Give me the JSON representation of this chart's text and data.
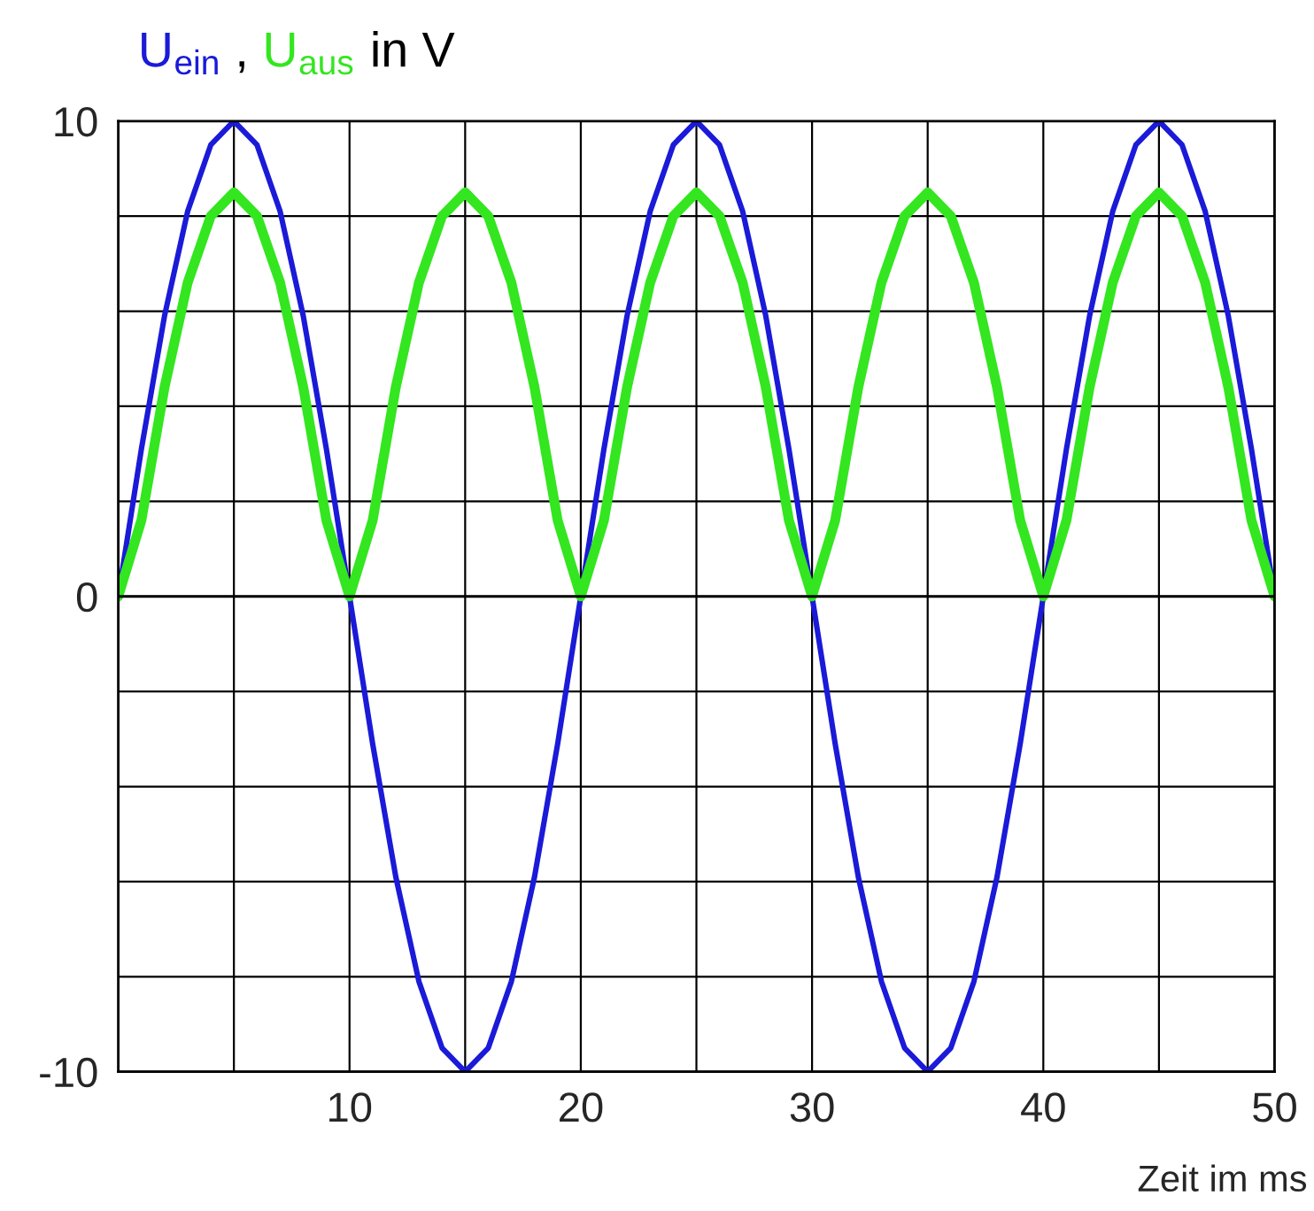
{
  "chart_data": {
    "type": "line",
    "title": "in V",
    "annotations": [
      ","
    ],
    "xlabel": "Zeit im ms",
    "x": [
      0,
      1,
      2,
      3,
      4,
      5,
      6,
      7,
      8,
      9,
      10,
      11,
      12,
      13,
      14,
      15,
      16,
      17,
      18,
      19,
      20,
      21,
      22,
      23,
      24,
      25,
      26,
      27,
      28,
      29,
      30,
      31,
      32,
      33,
      34,
      35,
      36,
      37,
      38,
      39,
      40,
      41,
      42,
      43,
      44,
      45,
      46,
      47,
      48,
      49,
      50
    ],
    "series": [
      {
        "name": "U$_{ein}$",
        "color": "#1a1ad8",
        "values": [
          0,
          3.1,
          5.9,
          8.1,
          9.5,
          10,
          9.5,
          8.1,
          5.9,
          3.1,
          0,
          -3.1,
          -5.9,
          -8.1,
          -9.5,
          -10,
          -9.5,
          -8.1,
          -5.9,
          -3.1,
          0,
          3.1,
          5.9,
          8.1,
          9.5,
          10,
          9.5,
          8.1,
          5.9,
          3.1,
          0,
          -3.1,
          -5.9,
          -8.1,
          -9.5,
          -10,
          -9.5,
          -8.1,
          -5.9,
          -3.1,
          0,
          3.1,
          5.9,
          8.1,
          9.5,
          10,
          9.5,
          8.1,
          5.9,
          3.1,
          0
        ]
      },
      {
        "name": "U$_{aus}$",
        "color": "#33e61f",
        "values": [
          0,
          1.6,
          4.4,
          6.6,
          8,
          8.5,
          8,
          6.6,
          4.4,
          1.6,
          0,
          1.6,
          4.4,
          6.6,
          8,
          8.5,
          8,
          6.6,
          4.4,
          1.6,
          0,
          1.6,
          4.4,
          6.6,
          8,
          8.5,
          8,
          6.6,
          4.4,
          1.6,
          0,
          1.6,
          4.4,
          6.6,
          8,
          8.5,
          8,
          6.6,
          4.4,
          1.6,
          0,
          1.6,
          4.4,
          6.6,
          8,
          8.5,
          8,
          6.6,
          4.4,
          1.6,
          0
        ]
      }
    ],
    "xlim": [
      0,
      50
    ],
    "ylim": [
      -10,
      10
    ],
    "xticks": [
      {
        "value": 0,
        "label": null
      },
      {
        "value": 5,
        "label": null
      },
      10,
      {
        "value": 15,
        "label": null
      },
      20,
      {
        "value": 25,
        "label": null
      },
      30,
      {
        "value": 35,
        "label": null
      },
      40,
      {
        "value": 45,
        "label": null
      },
      50
    ],
    "yticks": [
      -10,
      {
        "value": -8,
        "label": null
      },
      {
        "value": -6,
        "label": null
      },
      {
        "value": -4,
        "label": null
      },
      {
        "value": -2,
        "label": null
      },
      0,
      {
        "value": 2,
        "label": null
      },
      {
        "value": 4,
        "label": null
      },
      {
        "value": 6,
        "label": null
      },
      {
        "value": 8,
        "label": null
      },
      10
    ],
    "grid": true,
    "legend": false,
    "marker": "none",
    "line_style": "solid"
  }
}
